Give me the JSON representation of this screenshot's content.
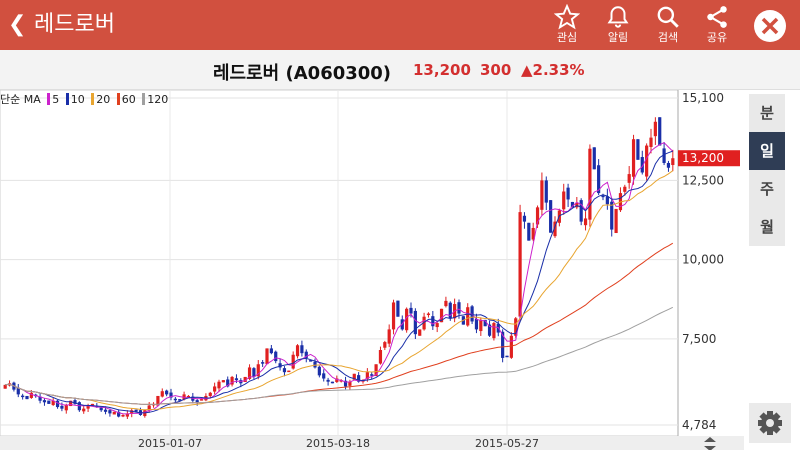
{
  "app": {
    "title": "레드로버"
  },
  "actions": [
    {
      "label": "관심",
      "icon": "star-icon"
    },
    {
      "label": "알림",
      "icon": "bell-icon"
    },
    {
      "label": "검색",
      "icon": "search-icon"
    },
    {
      "label": "공유",
      "icon": "share-icon"
    }
  ],
  "stock": {
    "name": "레드로버 (A060300)",
    "price": "13,200",
    "change": "300",
    "change_pct": "▲2.33%"
  },
  "legend": {
    "prefix": "단순 MA",
    "items": [
      {
        "label": "5",
        "color": "#cc22cc"
      },
      {
        "label": "10",
        "color": "#1a2fa8"
      },
      {
        "label": "20",
        "color": "#e8a530"
      },
      {
        "label": "60",
        "color": "#e0401f"
      },
      {
        "label": "120",
        "color": "#a0a0a0"
      }
    ]
  },
  "periods": [
    {
      "label": "분",
      "active": false
    },
    {
      "label": "일",
      "active": true
    },
    {
      "label": "주",
      "active": false
    },
    {
      "label": "월",
      "active": false
    }
  ],
  "chart_data": {
    "type": "candlestick",
    "y_ticks": [
      "15,100",
      "12,500",
      "10,000",
      "7,500",
      "4,784"
    ],
    "y_tick_values": [
      15100,
      12500,
      10000,
      7500,
      4784
    ],
    "x_ticks": [
      "2015-01-07",
      "2015-03-18",
      "2015-05-27"
    ],
    "current_price_label": "13,200",
    "ylim": [
      4784,
      15100
    ],
    "colors": {
      "up": "#e02020",
      "down": "#1a2fa8"
    },
    "close": [
      6050,
      6100,
      5900,
      5750,
      5700,
      5600,
      5800,
      5700,
      5550,
      5500,
      5450,
      5550,
      5350,
      5300,
      5400,
      5550,
      5450,
      5250,
      5300,
      5400,
      5450,
      5350,
      5250,
      5200,
      5150,
      5200,
      5050,
      5100,
      5150,
      5250,
      5200,
      5100,
      5250,
      5400,
      5450,
      5700,
      5850,
      5750,
      5650,
      5600,
      5550,
      5750,
      5700,
      5550,
      5500,
      5600,
      5700,
      5800,
      6000,
      6150,
      6200,
      6000,
      6300,
      6200,
      6100,
      6300,
      6600,
      6300,
      6700,
      6750,
      7200,
      7050,
      6800,
      6600,
      6450,
      6500,
      7000,
      7300,
      7050,
      6900,
      6800,
      6600,
      6350,
      6250,
      6150,
      6100,
      6250,
      6200,
      6000,
      6150,
      6400,
      6150,
      6200,
      6450,
      6350,
      6700,
      7150,
      7400,
      7800,
      8650,
      8200,
      7800,
      8450,
      8300,
      7650,
      7800,
      8200,
      8300,
      7900,
      8000,
      8450,
      8700,
      8150,
      8600,
      8300,
      7950,
      8500,
      8050,
      7800,
      8100,
      7900,
      7600,
      8000,
      7700,
      6900,
      6950,
      7600,
      8150,
      11500,
      11200,
      10600,
      11000,
      11650,
      12500,
      11800,
      10850,
      11200,
      11550,
      12150,
      11900,
      11650,
      11800,
      11200,
      11300,
      13500,
      12850,
      12100,
      12000,
      11750,
      10950,
      11600,
      12100,
      12300,
      12700,
      13800,
      13150,
      12750,
      13600,
      13850,
      14350,
      13600,
      13050,
      12900,
      13200
    ],
    "y_tick_precision_note": "values estimated from gridlines"
  }
}
